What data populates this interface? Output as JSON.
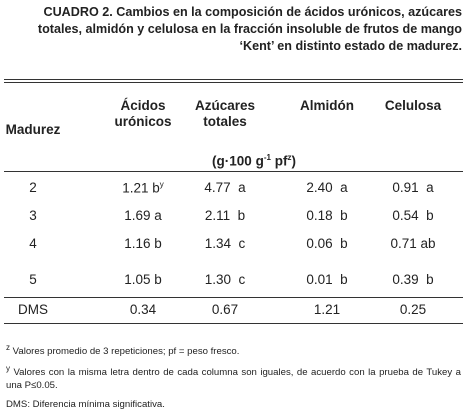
{
  "caption": {
    "label": "CUADRO 2.",
    "text": "Cambios en la composición de ácidos urónicos, azúcares totales, almidón y celulosa en la fracción insoluble de frutos de mango ‘Kent’ en distinto estado de madurez."
  },
  "table": {
    "headers": [
      "Madurez",
      "Ácidos urónicos",
      "Azúcares totales",
      "Almidón",
      "Celulosa"
    ],
    "units": {
      "start": "(g·100 g",
      "exp": "-1",
      "middle": " pf",
      "mark": "z",
      "end": ")"
    },
    "rows": [
      [
        "2",
        "1.21 b",
        "4.77  a",
        "2.40  a",
        "0.91  a"
      ],
      [
        "3",
        "1.69 a",
        "2.11  b",
        "0.18  b",
        "0.54  b"
      ],
      [
        "4",
        "1.16 b",
        "1.34  c",
        "0.06  b",
        "0.71 ab"
      ],
      [
        "5",
        "1.05 b",
        "1.30  c",
        "0.01  b",
        "0.39  b"
      ]
    ],
    "first_value_mark": "y",
    "dms": [
      "DMS",
      "0.34",
      "0.67",
      "1.21",
      "0.25"
    ]
  },
  "footnotes": [
    {
      "mark": "z",
      "text": "Valores promedio de 3 repeticiones; pf = peso fresco."
    },
    {
      "mark": "y",
      "text": "Valores con la misma letra dentro de cada columna son iguales, de acuerdo con la prueba de Tukey a una P≤0.05."
    },
    {
      "mark": "",
      "text": "DMS: Diferencia mínima significativa."
    }
  ]
}
